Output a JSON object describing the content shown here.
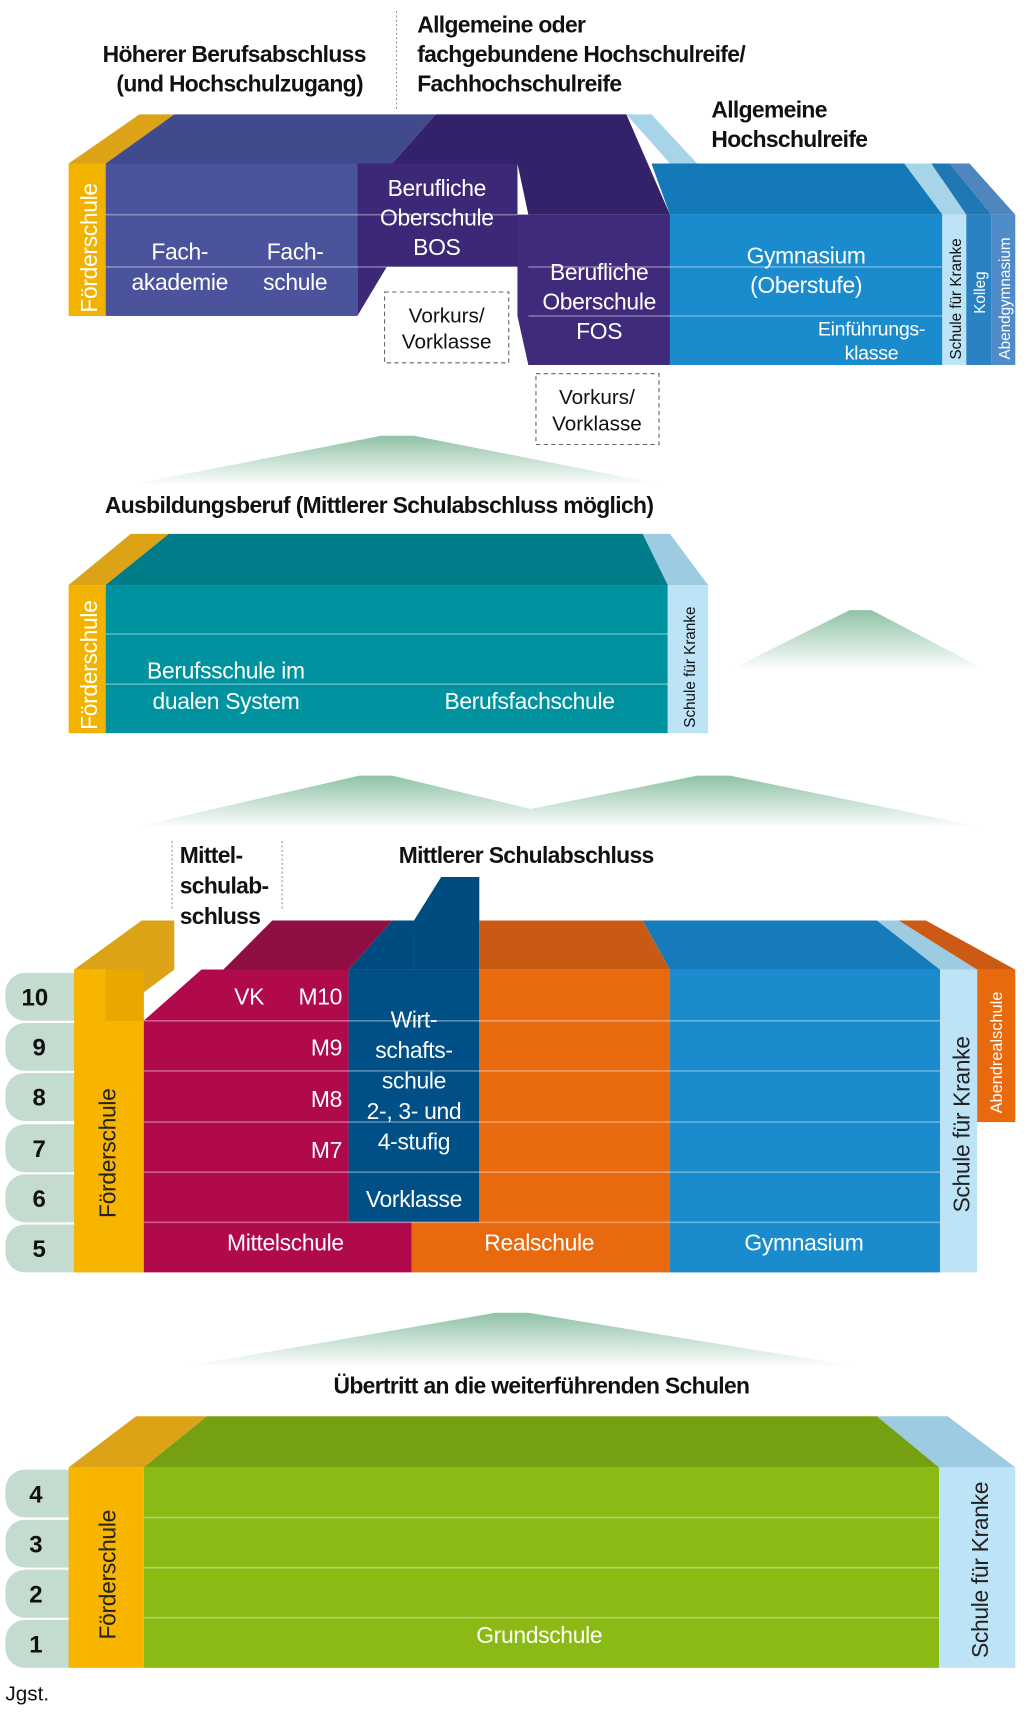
{
  "colors": {
    "foerderschule": "#f7b500",
    "fachschulen": "#4b539c",
    "bos_fos": "#3d2877",
    "gymnasium": "#1a8bcd",
    "schule_fuer_kranke": "#bde3f6",
    "ausbildung": "#00939f",
    "mittelschule": "#b00a4c",
    "wirtschaftsschule": "#004f86",
    "realschule": "#e8690e",
    "grundschule": "#8cba14",
    "hill": "#9cc8ae"
  },
  "top": {
    "heading_left": [
      "Höherer Berufsabschluss",
      "(und Hochschulzugang)"
    ],
    "heading_mid": [
      "Allgemeine oder",
      "fachgebundene Hochschulreife/",
      "Fachhochschulreife"
    ],
    "heading_right": [
      "Allgemeine",
      "Hochschulreife"
    ],
    "foerderschule": "Förderschule",
    "fachakademie": [
      "Fach-",
      "akademie"
    ],
    "fachschule": [
      "Fach-",
      "schule"
    ],
    "bos": [
      "Berufliche",
      "Oberschule",
      "BOS"
    ],
    "fos": [
      "Berufliche",
      "Oberschule",
      "FOS"
    ],
    "vorkurs_bos": [
      "Vorkurs/",
      "Vorklasse"
    ],
    "vorkurs_fos": [
      "Vorkurs/",
      "Vorklasse"
    ],
    "gymnasium": [
      "Gymnasium",
      "(Oberstufe)"
    ],
    "einfuehrung": [
      "Einführungs-",
      "klasse"
    ],
    "schule_fuer_kranke": "Schule für Kranke",
    "kolleg": "Kolleg",
    "abendgymnasium": "Abendgymnasium"
  },
  "middle": {
    "heading": "Ausbildungsberuf (Mittlerer Schulabschluss möglich)",
    "foerderschule": "Förderschule",
    "berufsschule": [
      "Berufsschule im",
      "dualen System"
    ],
    "berufsfachschule": "Berufsfachschule",
    "schule_fuer_kranke": "Schule für Kranke"
  },
  "secondary": {
    "heading_mittelschul": [
      "Mittel-",
      "schulab-",
      "schluss"
    ],
    "heading_mittlerer": "Mittlerer Schulabschluss",
    "grades": [
      "10",
      "9",
      "8",
      "7",
      "6",
      "5"
    ],
    "foerderschule": "Förderschule",
    "vk": "VK",
    "m_levels": [
      "M10",
      "M9",
      "M8",
      "M7"
    ],
    "mittelschule": "Mittelschule",
    "wirtschaftsschule": [
      "Wirt-",
      "schafts-",
      "schule",
      "2-, 3- und",
      "4-stufig"
    ],
    "vorklasse": "Vorklasse",
    "realschule": "Realschule",
    "gymnasium": "Gymnasium",
    "schule_fuer_kranke": "Schule für Kranke",
    "abendrealschule": "Abendrealschule"
  },
  "primary": {
    "heading": "Übertritt an die weiterführenden Schulen",
    "grades": [
      "4",
      "3",
      "2",
      "1"
    ],
    "foerderschule": "Förderschule",
    "grundschule": "Grundschule",
    "schule_fuer_kranke": "Schule für Kranke"
  },
  "axis_label": "Jgst."
}
